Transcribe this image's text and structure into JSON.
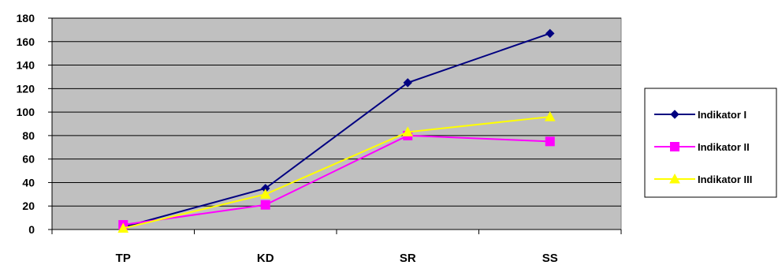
{
  "chart_data": {
    "type": "line",
    "categories": [
      "TP",
      "KD",
      "SR",
      "SS"
    ],
    "ylim": [
      0,
      180
    ],
    "yticks": [
      0,
      20,
      40,
      60,
      80,
      100,
      120,
      140,
      160,
      180
    ],
    "grid": true,
    "legend": "right",
    "plot_background": "#c0c0c0",
    "series": [
      {
        "name": "Indikator I",
        "values": [
          2,
          35,
          125,
          167
        ],
        "color": "#000080",
        "marker": "diamond"
      },
      {
        "name": "Indikator II",
        "values": [
          4,
          21,
          80,
          75
        ],
        "color": "#ff00ff",
        "marker": "square"
      },
      {
        "name": "Indikator III",
        "values": [
          1,
          30,
          83,
          96
        ],
        "color": "#ffff00",
        "marker": "triangle"
      }
    ]
  }
}
